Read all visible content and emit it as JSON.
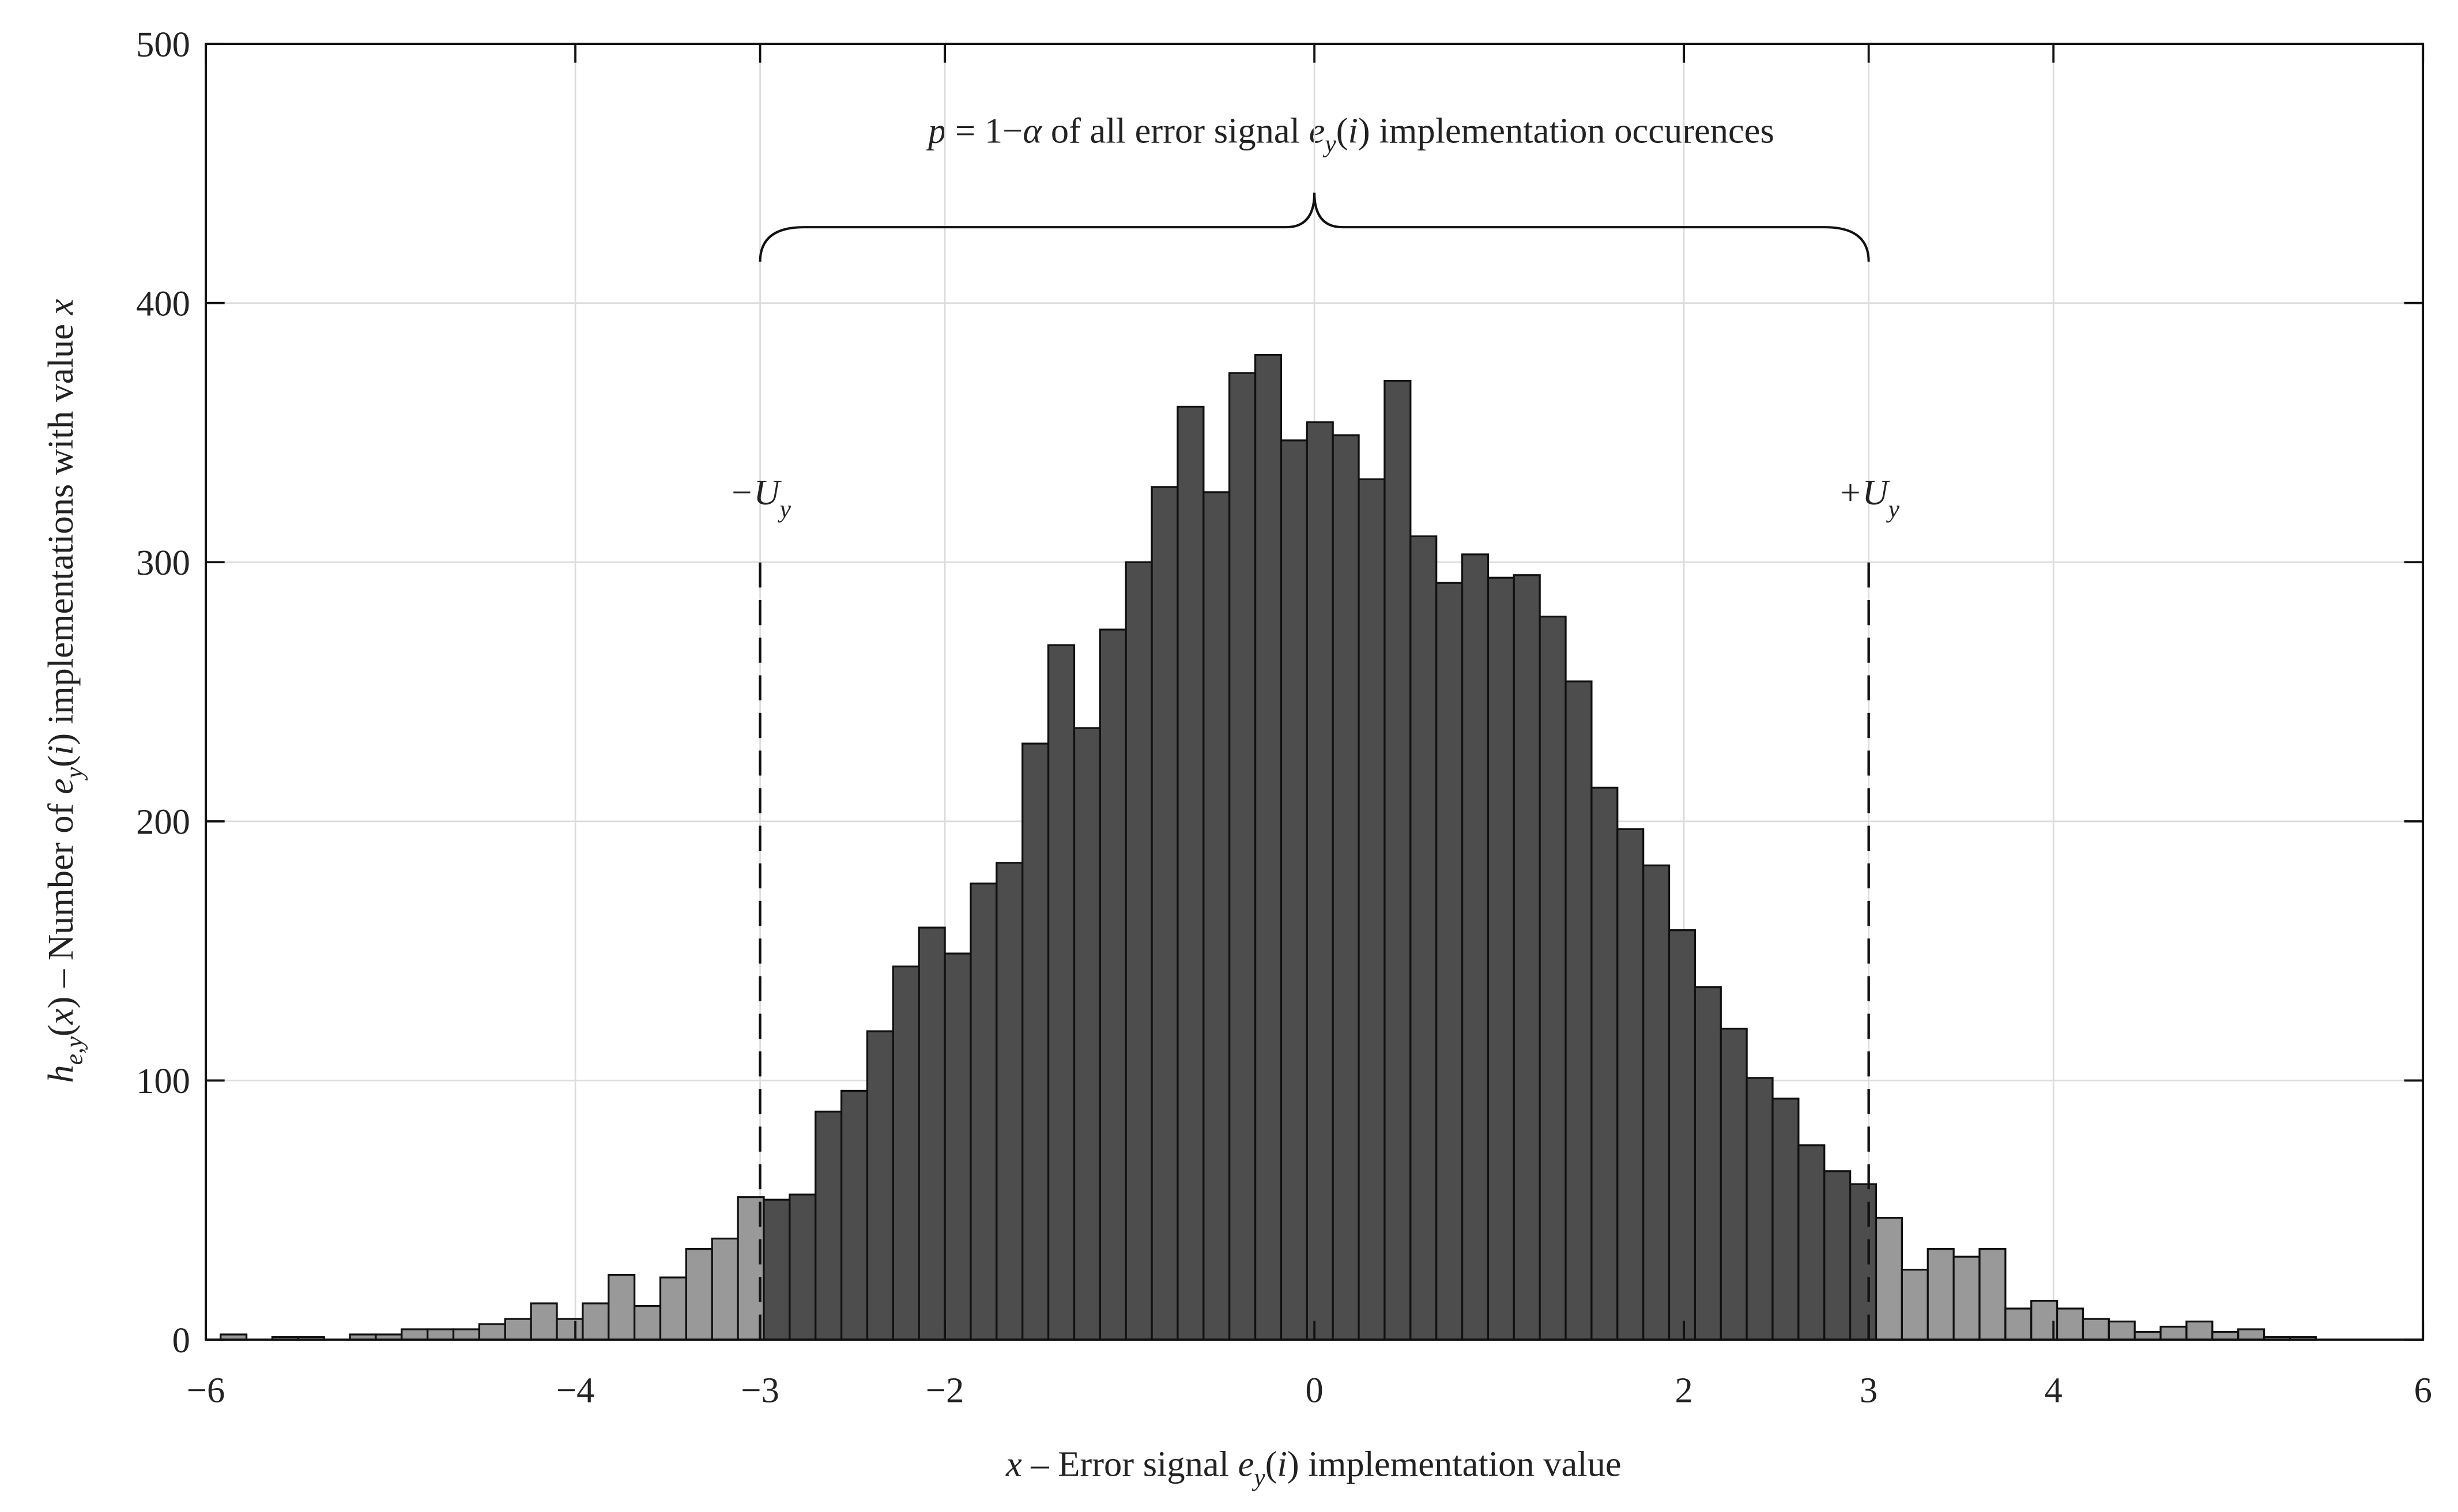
{
  "chart_data": {
    "type": "histogram",
    "title": [
      "p",
      " = 1−",
      "α",
      " of all error signal ",
      "e",
      "y",
      "(",
      "i",
      ") implementation occurences"
    ],
    "x_label": [
      "x",
      " – Error signal ",
      "e",
      "y",
      "(",
      "i",
      ") implementation value"
    ],
    "y_label": [
      "h",
      "e,y",
      "(",
      "x",
      ") – Number of ",
      "e",
      "y",
      "(",
      "i",
      ") implementations with value ",
      "x"
    ],
    "bins": [
      -5.92,
      -5.78,
      -5.64,
      -5.5,
      -5.36,
      -5.22,
      -5.08,
      -4.94,
      -4.8,
      -4.66,
      -4.52,
      -4.38,
      -4.24,
      -4.1,
      -3.96,
      -3.82,
      -3.68,
      -3.54,
      -3.4,
      -3.26,
      -3.12,
      -2.98,
      -2.84,
      -2.7,
      -2.56,
      -2.42,
      -2.28,
      -2.14,
      -2,
      -1.86,
      -1.72,
      -1.58,
      -1.44,
      -1.3,
      -1.16,
      -1.02,
      -0.88,
      -0.74,
      -0.6,
      -0.46,
      -0.32,
      -0.18,
      -0.04,
      0.1,
      0.24,
      0.38,
      0.52,
      0.66,
      0.8,
      0.94,
      1.08,
      1.22,
      1.36,
      1.5,
      1.64,
      1.78,
      1.92,
      2.06,
      2.2,
      2.34,
      2.48,
      2.62,
      2.76,
      2.9,
      3.04,
      3.18,
      3.32,
      3.46,
      3.6,
      3.74,
      3.88,
      4.02,
      4.16,
      4.3,
      4.44,
      4.58,
      4.72,
      4.86,
      5.0,
      5.14,
      5.28,
      5.42
    ],
    "values": [
      2,
      0,
      1,
      1,
      0,
      2,
      2,
      4,
      4,
      4,
      6,
      8,
      14,
      8,
      14,
      25,
      13,
      24,
      35,
      39,
      55,
      54,
      56,
      88,
      96,
      119,
      144,
      159,
      149,
      176,
      184,
      230,
      268,
      236,
      274,
      300,
      329,
      360,
      327,
      373,
      380,
      347,
      354,
      349,
      332,
      370,
      310,
      292,
      303,
      294,
      295,
      279,
      254,
      213,
      197,
      183,
      158,
      136,
      120,
      101,
      93,
      75,
      65,
      60,
      47,
      27,
      35,
      32,
      35,
      12,
      15,
      12,
      8,
      7,
      3,
      5,
      7,
      3,
      4,
      1,
      1
    ],
    "inner_color": "#4d4d4d",
    "outer_color": "#999999",
    "bounds": [
      {
        "x": -3,
        "label": [
          "−U",
          "y"
        ]
      },
      {
        "x": 3,
        "label": [
          "+U",
          "y"
        ]
      }
    ],
    "xlim": [
      -6,
      6
    ],
    "xticks": [
      {
        "value": -6,
        "label": "−6"
      },
      {
        "value": -4,
        "label": "−4"
      },
      {
        "value": -3,
        "label": "−3"
      },
      {
        "value": -2,
        "label": "−2"
      },
      0,
      2,
      3,
      4,
      6
    ],
    "ylim": [
      0,
      500
    ],
    "yticks": [
      0,
      100,
      200,
      300,
      400,
      500
    ],
    "grid": true
  }
}
